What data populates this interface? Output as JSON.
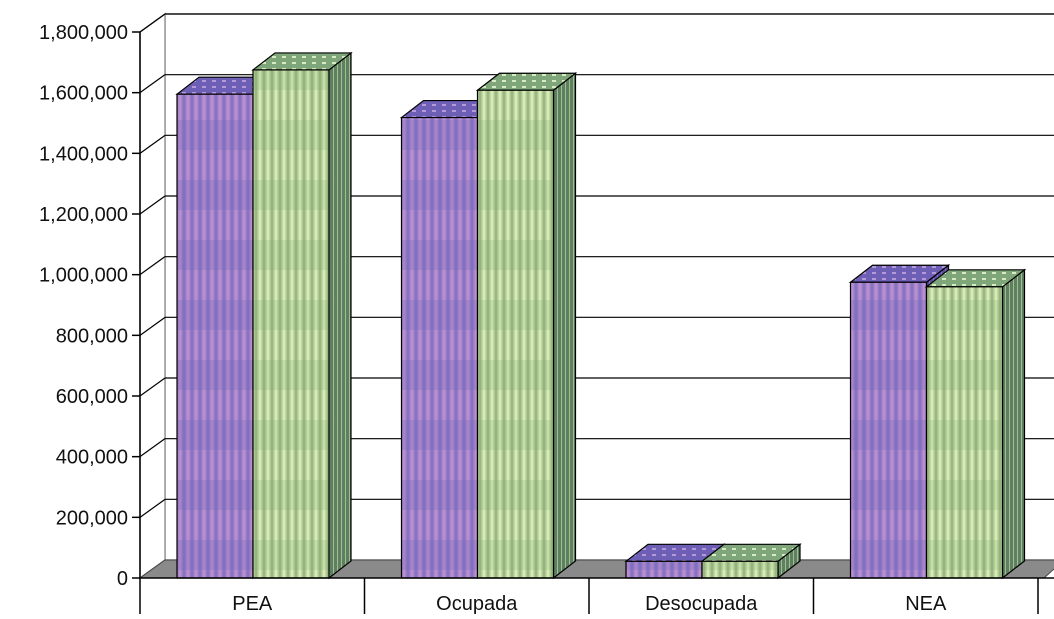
{
  "chart_data": {
    "type": "bar",
    "title": "",
    "xlabel": "",
    "ylabel": "",
    "categories": [
      "PEA",
      "Ocupada",
      "Desocupada",
      "NEA"
    ],
    "series": [
      {
        "values": [
          1595000,
          1518000,
          55000,
          975000
        ],
        "color": "#c58fd0"
      },
      {
        "values": [
          1675000,
          1608000,
          55000,
          960000
        ],
        "color": "#cfe6a3"
      }
    ],
    "ylim": [
      0,
      1800000
    ],
    "yticks": [
      0,
      200000,
      400000,
      600000,
      800000,
      1000000,
      1200000,
      1400000,
      1600000,
      1800000
    ],
    "ytick_labels": [
      "0",
      "200,000",
      "400,000",
      "600,000",
      "800,000",
      "1,000,000",
      "1,200,000",
      "1,400,000",
      "1,600,000",
      "1,800,000"
    ],
    "grid": true,
    "legend": "none",
    "style": "3d-clustered-column"
  }
}
